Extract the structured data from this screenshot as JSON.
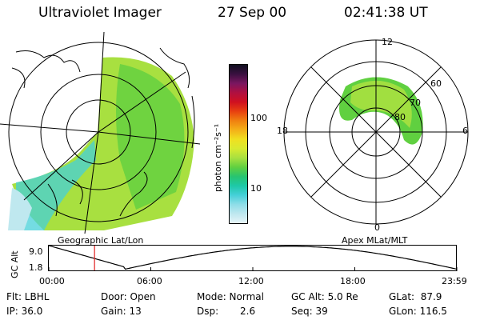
{
  "header": {
    "instrument": "Ultraviolet Imager",
    "date": "27 Sep 00",
    "time": "02:41:38 UT"
  },
  "colorbar": {
    "unit_label": "photon cm⁻²s⁻¹",
    "tick_100": "100",
    "tick_10": "10",
    "colors": [
      "#e6f4f8",
      "#bfe8ef",
      "#8fdde8",
      "#46d0d8",
      "#1ec8a8",
      "#27c470",
      "#60d040",
      "#a8e040",
      "#d8ea30",
      "#f0e020",
      "#f4b018",
      "#f08010",
      "#e84010",
      "#d01020",
      "#b01040",
      "#7a1660",
      "#3a1040",
      "#101020"
    ]
  },
  "left_map": {
    "label": "Geographic Lat/Lon"
  },
  "right_polar": {
    "label": "Apex MLat/MLT",
    "mlt_labels": {
      "top": "12",
      "left": "18",
      "right": "6",
      "bottom": "0"
    },
    "lat_labels": [
      "60",
      "70",
      "80"
    ]
  },
  "altitude_plot": {
    "ylabel": "GC Alt",
    "ymax": "9.0",
    "ymin": "1.8",
    "x_ticks": [
      "00:00",
      "06:00",
      "12:00",
      "18:00",
      "23:59"
    ],
    "current_hour": 2.69
  },
  "footer": {
    "flt": "Flt: LBHL",
    "door": "Door: Open",
    "mode": "Mode: Normal",
    "gc_alt": "GC Alt: 5.0 Re",
    "glat": "GLat:  87.9",
    "ip": "IP: 36.0",
    "gain": "Gain: 13",
    "dsp_label": "Dsp:",
    "dsp_value": "2.6",
    "seq": "Seq: 39",
    "glon": "GLon: 116.5"
  }
}
